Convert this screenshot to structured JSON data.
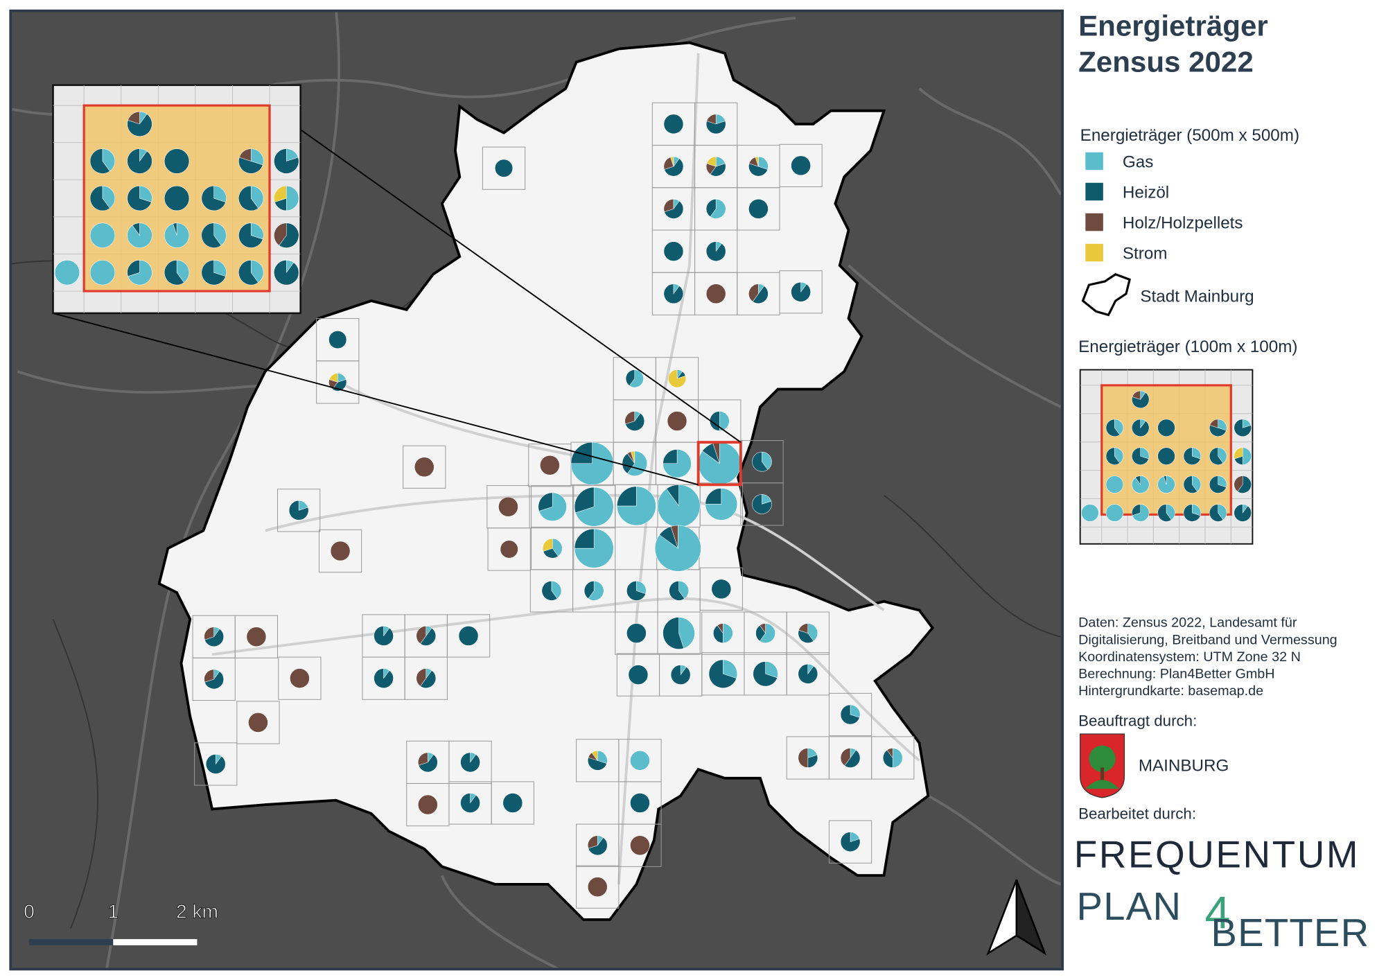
{
  "title": [
    "Energieträger",
    "Zensus 2022"
  ],
  "legend": {
    "title_500": "Energieträger (500m x 500m)",
    "items": [
      {
        "label": "Gas",
        "color": "#5bbccc"
      },
      {
        "label": "Heizöl",
        "color": "#0f5a6d"
      },
      {
        "label": "Holz/Holzpellets",
        "color": "#6e4a3f"
      },
      {
        "label": "Strom",
        "color": "#e8c93a"
      }
    ],
    "boundary": "Stadt Mainburg",
    "title_100": "Energieträger (100m x 100m)"
  },
  "credits": [
    "Daten: Zensus 2022, Landesamt für",
    "Digitalisierung, Breitband und Vermessung",
    "Koordinatensystem: UTM Zone 32 N",
    "Berechnung: Plan4Better GmbH",
    "Hintergrundkarte: basemap.de"
  ],
  "commissioned": {
    "label": "Beauftragt durch:",
    "name": "MAINBURG"
  },
  "edited": {
    "label": "Bearbeitet durch:",
    "frequentum": "FREQUENTUM",
    "plan4better": [
      "PLAN",
      "4",
      "BETTER"
    ]
  },
  "scale_bar": [
    "0",
    "1",
    "2 km"
  ],
  "pies": [
    [
      0,
      100,
      0,
      0
    ],
    [
      20,
      60,
      20,
      0
    ],
    [
      10,
      60,
      25,
      5
    ],
    [
      20,
      40,
      20,
      20
    ],
    [
      30,
      50,
      15,
      5
    ],
    [
      0,
      100,
      0,
      0
    ],
    [
      0,
      100,
      0,
      0
    ],
    [
      10,
      60,
      30,
      0
    ],
    [
      60,
      40,
      0,
      0
    ],
    [
      0,
      100,
      0,
      0
    ],
    [
      0,
      100,
      0,
      0
    ],
    [
      10,
      90,
      0,
      0
    ],
    [
      10,
      90,
      0,
      0
    ],
    [
      0,
      0,
      100,
      0
    ],
    [
      10,
      50,
      40,
      0
    ],
    [
      10,
      90,
      0,
      0
    ],
    [
      0,
      100,
      0,
      0
    ],
    [
      20,
      40,
      20,
      20
    ],
    [
      10,
      10,
      0,
      80
    ],
    [
      60,
      40,
      0,
      0
    ],
    [
      50,
      50,
      0,
      0
    ],
    [
      10,
      60,
      30,
      0
    ],
    [
      0,
      0,
      100,
      0
    ],
    [
      75,
      25,
      0,
      0
    ],
    [
      60,
      30,
      5,
      5
    ],
    [
      75,
      25,
      0,
      0
    ],
    [
      85,
      10,
      5,
      0
    ],
    [
      40,
      60,
      0,
      0
    ],
    [
      0,
      0,
      100,
      0
    ],
    [
      0,
      0,
      100,
      0
    ],
    [
      70,
      30,
      0,
      0
    ],
    [
      70,
      30,
      0,
      0
    ],
    [
      75,
      25,
      0,
      0
    ],
    [
      90,
      10,
      0,
      0
    ],
    [
      75,
      25,
      0,
      0
    ],
    [
      20,
      80,
      0,
      0
    ],
    [
      0,
      0,
      100,
      0
    ],
    [
      75,
      25,
      0,
      0
    ],
    [
      85,
      10,
      5,
      0
    ],
    [
      40,
      30,
      0,
      30
    ],
    [
      0,
      0,
      100,
      0
    ],
    [
      20,
      80,
      0,
      0
    ],
    [
      0,
      0,
      100,
      0
    ],
    [
      40,
      60,
      0,
      0
    ],
    [
      60,
      40,
      0,
      0
    ],
    [
      30,
      70,
      0,
      0
    ],
    [
      40,
      60,
      0,
      0
    ],
    [
      0,
      100,
      0,
      0
    ],
    [
      0,
      100,
      0,
      0
    ],
    [
      45,
      55,
      0,
      0
    ],
    [
      50,
      40,
      10,
      0
    ],
    [
      60,
      30,
      10,
      0
    ],
    [
      40,
      40,
      20,
      0
    ],
    [
      10,
      60,
      30,
      0
    ],
    [
      0,
      0,
      100,
      0
    ],
    [
      10,
      90,
      0,
      0
    ],
    [
      10,
      50,
      40,
      0
    ],
    [
      0,
      100,
      0,
      0
    ],
    [
      10,
      60,
      30,
      0
    ],
    [
      0,
      0,
      100,
      0
    ],
    [
      10,
      90,
      0,
      0
    ],
    [
      10,
      50,
      40,
      0
    ],
    [
      0,
      100,
      0,
      0
    ],
    [
      10,
      90,
      0,
      0
    ],
    [
      30,
      70,
      0,
      0
    ],
    [
      30,
      70,
      0,
      0
    ],
    [
      10,
      90,
      0,
      0
    ],
    [
      0,
      0,
      100,
      0
    ],
    [
      30,
      70,
      0,
      0
    ],
    [
      10,
      90,
      0,
      0
    ],
    [
      10,
      60,
      30,
      0
    ],
    [
      10,
      90,
      0,
      0
    ],
    [
      30,
      50,
      10,
      10
    ],
    [
      100,
      0,
      0,
      0
    ],
    [
      20,
      30,
      50,
      0
    ],
    [
      10,
      50,
      40,
      0
    ],
    [
      50,
      40,
      10,
      0
    ],
    [
      0,
      0,
      100,
      0
    ],
    [
      10,
      90,
      0,
      0
    ],
    [
      0,
      100,
      0,
      0
    ],
    [
      0,
      100,
      0,
      0
    ],
    [
      10,
      60,
      30,
      0
    ],
    [
      0,
      0,
      100,
      0
    ],
    [
      20,
      80,
      0,
      0
    ],
    [
      0,
      0,
      100,
      0
    ]
  ],
  "inset_pies": [
    [
      10,
      70,
      20,
      0
    ],
    [
      40,
      60,
      0,
      0
    ],
    [
      10,
      90,
      0,
      0
    ],
    [
      0,
      100,
      0,
      0
    ],
    [
      30,
      50,
      20,
      0
    ],
    [
      20,
      80,
      0,
      0
    ],
    [
      40,
      60,
      0,
      0
    ],
    [
      30,
      70,
      0,
      0
    ],
    [
      0,
      100,
      0,
      0
    ],
    [
      30,
      70,
      0,
      0
    ],
    [
      40,
      60,
      0,
      0
    ],
    [
      50,
      20,
      0,
      30
    ],
    [
      100,
      0,
      0,
      0
    ],
    [
      90,
      10,
      0,
      0
    ],
    [
      95,
      5,
      0,
      0
    ],
    [
      40,
      60,
      0,
      0
    ],
    [
      30,
      70,
      0,
      0
    ],
    [
      0,
      60,
      40,
      0
    ],
    [
      100,
      0,
      0,
      0
    ],
    [
      100,
      0,
      0,
      0
    ],
    [
      70,
      30,
      0,
      0
    ],
    [
      40,
      60,
      0,
      0
    ],
    [
      30,
      70,
      0,
      0
    ],
    [
      40,
      60,
      0,
      0
    ],
    [
      10,
      90,
      0,
      0
    ]
  ]
}
